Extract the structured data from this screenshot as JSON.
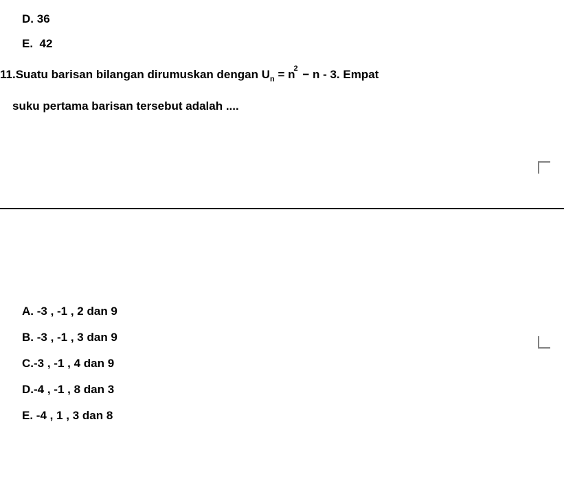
{
  "prev_options": {
    "d": {
      "letter": "D.",
      "value": "36"
    },
    "e": {
      "letter": "E.",
      "value": "42"
    }
  },
  "question": {
    "number": "11.",
    "text_part1": "Suatu barisan bilangan dirumuskan dengan U",
    "formula_sub": "n",
    "formula_mid": " = n",
    "formula_sup": "2",
    "formula_end": " − n - 3. Empat",
    "text_part2": "suku pertama barisan tersebut adalah ...."
  },
  "options": {
    "a": {
      "letter": "A.",
      "text": "-3 , -1 , 2 dan 9"
    },
    "b": {
      "letter": "B.",
      "text": "-3 , -1 , 3 dan 9"
    },
    "c": {
      "letter": "C.",
      "text": "-3 , -1 , 4 dan 9"
    },
    "d": {
      "letter": "D.",
      "text": "-4 , -1 , 8 dan 3"
    },
    "e": {
      "letter": "E.",
      "text": "-4 , 1 , 3 dan 8"
    }
  }
}
